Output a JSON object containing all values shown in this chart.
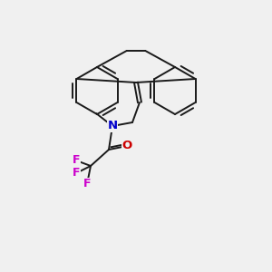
{
  "background_color": "#f0f0f0",
  "bond_color": "#1a1a1a",
  "atom_colors": {
    "N": "#0000cc",
    "O": "#cc0000",
    "F": "#cc00cc",
    "C": "#1a1a1a"
  },
  "figsize": [
    3.0,
    3.0
  ],
  "dpi": 100,
  "lw": 1.4,
  "ring_r": 26
}
